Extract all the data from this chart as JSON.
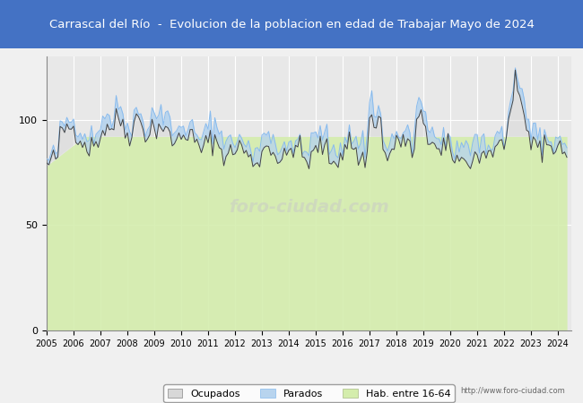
{
  "title": "Carrascal del Río  -  Evolucion de la poblacion en edad de Trabajar Mayo de 2024",
  "title_bg": "#4472c4",
  "title_color": "#ffffff",
  "xlabel": "",
  "ylabel": "",
  "xlim": [
    2005.0,
    2024.5
  ],
  "ylim": [
    0,
    130
  ],
  "yticks": [
    0,
    50,
    100
  ],
  "xticks": [
    2005,
    2006,
    2007,
    2008,
    2009,
    2010,
    2011,
    2012,
    2013,
    2014,
    2015,
    2016,
    2017,
    2018,
    2019,
    2020,
    2021,
    2022,
    2023,
    2024
  ],
  "bg_color": "#e8e8e8",
  "plot_bg": "#e8e8e8",
  "grid_color": "#ffffff",
  "legend_labels": [
    "Ocupados",
    "Parados",
    "Hab. entre 16-64"
  ],
  "legend_colors": [
    "#c0c0c0",
    "#aaccee",
    "#ccee99"
  ],
  "line_ocupados_color": "#555555",
  "line_parados_color": "#88bbdd",
  "fill_hab_color": "#ccee99",
  "fill_parados_color": "#aaccee",
  "fill_ocupados_color": "#cccccc",
  "watermark": "foro-ciudad.com",
  "url": "http://www.foro-ciudad.com",
  "footnote_fontsize": 7
}
